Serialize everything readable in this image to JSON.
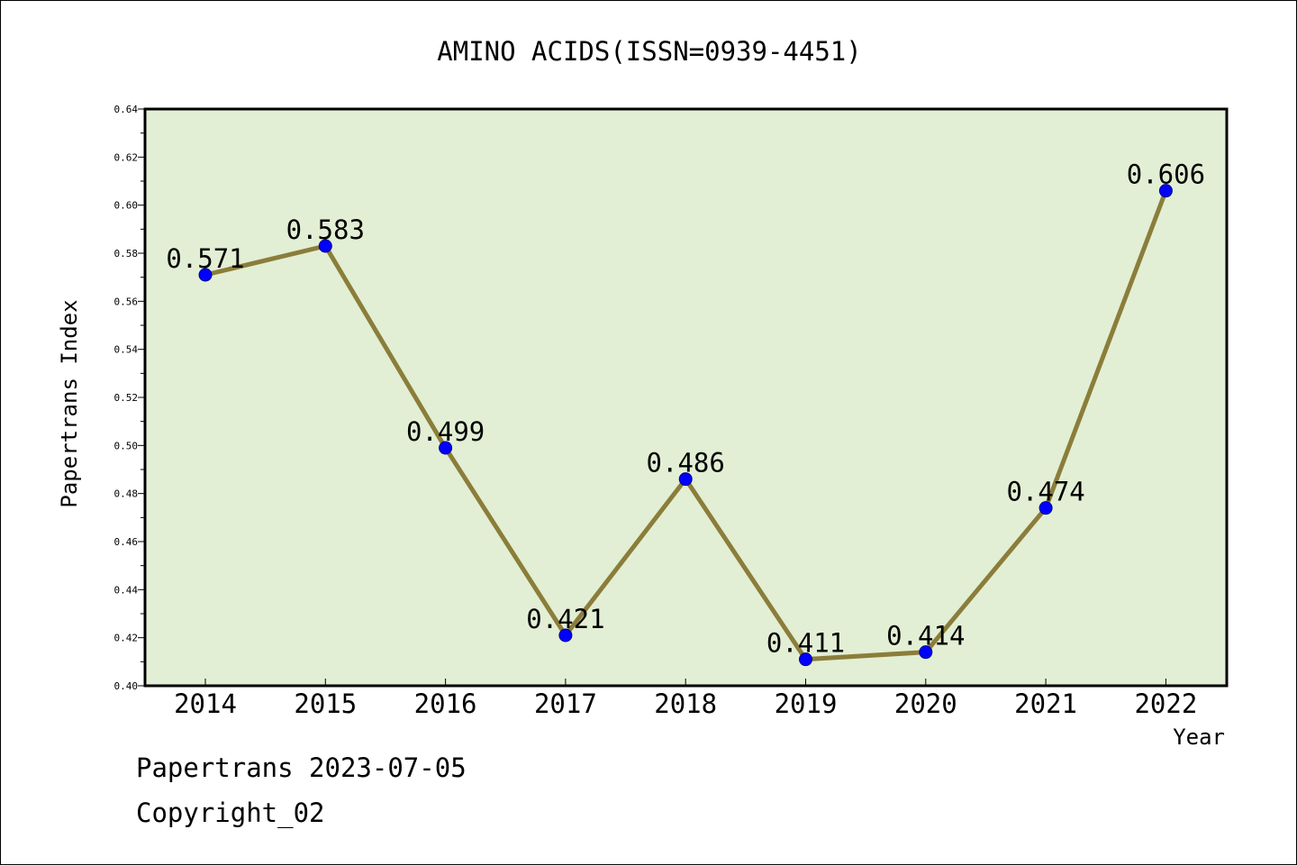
{
  "chart_data": {
    "type": "line",
    "title": "AMINO ACIDS(ISSN=0939-4451)",
    "xlabel": "Year",
    "ylabel": "Papertrans Index",
    "categories": [
      "2014",
      "2015",
      "2016",
      "2017",
      "2018",
      "2019",
      "2020",
      "2021",
      "2022"
    ],
    "series": [
      {
        "values": [
          0.571,
          0.583,
          0.499,
          0.421,
          0.486,
          0.411,
          0.414,
          0.474,
          0.606
        ]
      }
    ],
    "data_labels": [
      "0.571",
      "0.583",
      "0.499",
      "0.421",
      "0.486",
      "0.411",
      "0.414",
      "0.474",
      "0.606"
    ],
    "ylim": [
      0.4,
      0.64
    ],
    "yticks": [
      "0.40",
      "0.42",
      "0.44",
      "0.46",
      "0.48",
      "0.50",
      "0.52",
      "0.54",
      "0.56",
      "0.58",
      "0.60",
      "0.62",
      "0.64"
    ],
    "grid": false,
    "colors": {
      "plot_background": "#e2efd4",
      "line": "#8b7d3a",
      "marker": "#0000ff"
    }
  },
  "footer": {
    "line1": "Papertrans 2023-07-05",
    "line2": "Copyright_02"
  }
}
